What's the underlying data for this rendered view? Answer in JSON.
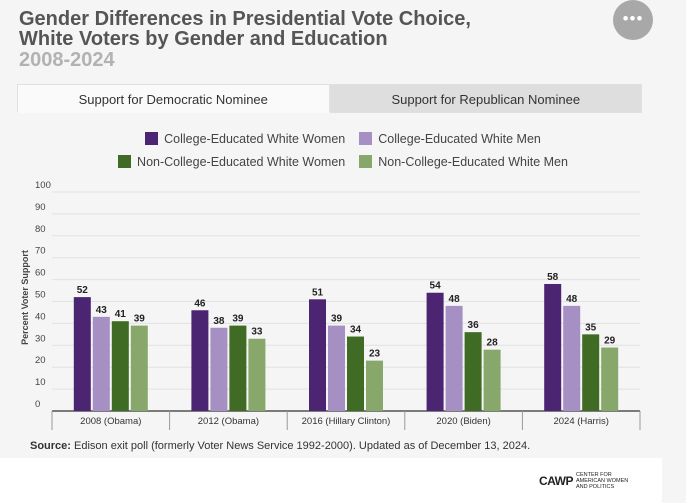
{
  "header": {
    "title_line1": "Gender Differences in Presidential Vote Choice,",
    "title_line2": "White Voters by Gender and Education",
    "title_line3": "2008-2024",
    "menu_glyph": "•••"
  },
  "tabs": [
    {
      "label": "Support for Democratic Nominee",
      "active": true
    },
    {
      "label": "Support for Republican Nominee",
      "active": false
    }
  ],
  "chart_data": {
    "type": "bar",
    "title": "Gender Differences in Presidential Vote Choice, White Voters by Gender and Education 2008-2024",
    "xlabel": "",
    "ylabel": "Percent Voter Support",
    "ylim": [
      0,
      100
    ],
    "yticks": [
      0,
      10,
      20,
      30,
      40,
      50,
      60,
      70,
      80,
      90,
      100
    ],
    "grid": true,
    "legend_position": "top-center",
    "categories": [
      "2008 (Obama)",
      "2012 (Obama)",
      "2016 (Hillary Clinton)",
      "2020 (Biden)",
      "2024 (Harris)"
    ],
    "series": [
      {
        "name": "College-Educated White Women",
        "color": "#4b2472",
        "values": [
          52,
          46,
          51,
          54,
          58
        ]
      },
      {
        "name": "College-Educated White Men",
        "color": "#a58fc3",
        "values": [
          43,
          38,
          39,
          48,
          48
        ]
      },
      {
        "name": "Non-College-Educated White Women",
        "color": "#3f6b24",
        "values": [
          41,
          39,
          34,
          36,
          35
        ]
      },
      {
        "name": "Non-College-Educated White Men",
        "color": "#88a86b",
        "values": [
          39,
          33,
          23,
          28,
          29
        ]
      }
    ]
  },
  "source": {
    "label": "Source:",
    "text": "Edison exit poll (formerly Voter News Service 1992-2000). Updated as of December 13, 2024."
  },
  "footer": {
    "logo_word": "CAWP",
    "logo_tag": "CENTER FOR AMERICAN WOMEN AND POLITICS"
  }
}
